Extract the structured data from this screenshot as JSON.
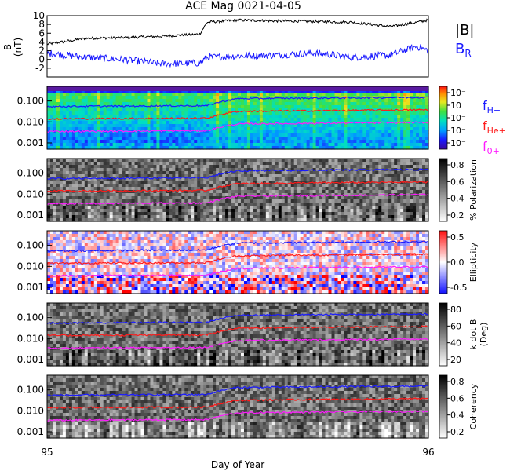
{
  "title": "ACE Mag 0021-04-05",
  "xlabel": "Day of Year",
  "colors": {
    "black": "#000000",
    "blue": "#1a1aff",
    "red": "#ff1a1a",
    "magenta": "#ff1aff"
  },
  "chart_data": [
    {
      "type": "line",
      "panel": "B",
      "ylabel": "B (nT)",
      "ylabel_line1": "B",
      "ylabel_line2": "(nT)",
      "ylim": [
        -4,
        10
      ],
      "yticks": [
        "10",
        "8",
        "6",
        "4",
        "2",
        "0",
        "-2"
      ],
      "legend": [
        "|B|",
        "BR"
      ],
      "legend_B": "|B|",
      "legend_BR_main": "B",
      "legend_BR_sub": "R",
      "x": [
        95.0,
        95.1,
        95.2,
        95.3,
        95.4,
        95.42,
        95.5,
        95.6,
        95.7,
        95.8,
        95.9,
        95.97,
        96.0
      ],
      "series": [
        {
          "name": "|B|",
          "color": "#000000",
          "values": [
            3.5,
            4.8,
            5.0,
            5.3,
            5.8,
            8.5,
            9.0,
            8.8,
            8.7,
            8.5,
            7.5,
            8.5,
            9.0
          ]
        },
        {
          "name": "BR",
          "color": "#1a1aff",
          "values": [
            1.5,
            0.5,
            0.0,
            -1.0,
            -0.8,
            0.5,
            0.8,
            1.0,
            1.5,
            0.5,
            1.0,
            3.0,
            2.0
          ]
        }
      ]
    },
    {
      "type": "heatmap",
      "panel": "spectrogram",
      "ylim": [
        0.0005,
        0.5
      ],
      "yticks": [
        "0.100",
        "0.010",
        "0.001"
      ],
      "colorbar_ticks": [
        "10⁻",
        "10⁻",
        "10⁻",
        "10⁻",
        "10⁻"
      ],
      "lines": [
        {
          "name": "fH+",
          "color": "#1a1aff",
          "x": [
            95.0,
            95.42,
            95.5,
            96.0
          ],
          "values": [
            0.055,
            0.06,
            0.13,
            0.15
          ]
        },
        {
          "name": "fHe+",
          "color": "#ff1a1a",
          "x": [
            95.0,
            95.42,
            95.5,
            96.0
          ],
          "values": [
            0.014,
            0.015,
            0.032,
            0.038
          ]
        },
        {
          "name": "fO+",
          "color": "#ff1aff",
          "x": [
            95.0,
            95.42,
            95.5,
            96.0
          ],
          "values": [
            0.0035,
            0.0038,
            0.008,
            0.0095
          ]
        }
      ],
      "legend": [
        {
          "main": "f",
          "sub": "H+",
          "color": "#1a1aff"
        },
        {
          "main": "f",
          "sub": "He+",
          "color": "#ff1a1a"
        },
        {
          "main": "f",
          "sub": "0+",
          "color": "#ff1aff"
        }
      ]
    },
    {
      "type": "heatmap",
      "panel": "polarization",
      "yticks": [
        "0.100",
        "0.010",
        "0.001"
      ],
      "colorbar_label": "% Polarization",
      "colorbar_ticks": [
        "0.8",
        "0.6",
        "0.4",
        "0.2"
      ]
    },
    {
      "type": "heatmap",
      "panel": "ellipticity",
      "yticks": [
        "0.100",
        "0.010",
        "0.001"
      ],
      "colorbar_label": "Ellipticity",
      "colorbar_ticks": [
        "0.5",
        "0.0",
        "-0.5"
      ]
    },
    {
      "type": "heatmap",
      "panel": "kdotb",
      "yticks": [
        "0.100",
        "0.010",
        "0.001"
      ],
      "colorbar_label": "k dot B",
      "colorbar_label2": "(Deg)",
      "colorbar_ticks": [
        "80",
        "60",
        "40",
        "20"
      ]
    },
    {
      "type": "heatmap",
      "panel": "coherency",
      "yticks": [
        "0.100",
        "0.010",
        "0.001"
      ],
      "colorbar_label": "Coherency",
      "colorbar_ticks": [
        "0.8",
        "0.6",
        "0.4",
        "0.2"
      ]
    }
  ],
  "xtick_labels": [
    "95",
    "96"
  ],
  "xlim": [
    95,
    96
  ]
}
